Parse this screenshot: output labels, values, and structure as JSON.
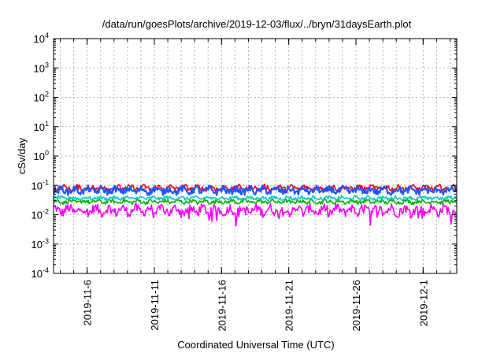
{
  "chart_data": {
    "type": "line",
    "title": "/data/run/goesPlots/archive/2019-12-03/flux/../bryn/31daysEarth.plot",
    "xlabel": "Coordinated Universal Time (UTC)",
    "ylabel": "cSv/day",
    "yscale": "log",
    "ylim": [
      0.0001,
      10000
    ],
    "y_ticks": [
      {
        "value": 0.0001,
        "base": "10",
        "exp": "-4"
      },
      {
        "value": 0.001,
        "base": "10",
        "exp": "-3"
      },
      {
        "value": 0.01,
        "base": "10",
        "exp": "-2"
      },
      {
        "value": 0.1,
        "base": "10",
        "exp": "-1"
      },
      {
        "value": 1,
        "base": "10",
        "exp": "0"
      },
      {
        "value": 10,
        "base": "10",
        "exp": "1"
      },
      {
        "value": 100,
        "base": "10",
        "exp": "2"
      },
      {
        "value": 1000,
        "base": "10",
        "exp": "3"
      },
      {
        "value": 10000,
        "base": "10",
        "exp": "4"
      }
    ],
    "xlim": [
      "2019-11-03T12:00",
      "2019-12-03T12:00"
    ],
    "x_ticks": [
      "2019-11-6",
      "2019-11-11",
      "2019-11-16",
      "2019-11-21",
      "2019-11-26",
      "2019-12-1"
    ],
    "x_tick_dates": [
      "2019-11-06",
      "2019-11-11",
      "2019-11-16",
      "2019-11-21",
      "2019-11-26",
      "2019-12-01"
    ],
    "grid": true,
    "series": [
      {
        "color": "#ff0000",
        "baseline": 0.06,
        "peak": 0.11
      },
      {
        "color": "#2255ff",
        "baseline": 0.045,
        "peak": 0.1
      },
      {
        "color": "#00c8c8",
        "baseline": 0.03,
        "peak": 0.045
      },
      {
        "color": "#00b000",
        "baseline": 0.022,
        "peak": 0.035
      },
      {
        "color": "#ff00ff",
        "baseline": 0.008,
        "peak": 0.025
      }
    ]
  }
}
